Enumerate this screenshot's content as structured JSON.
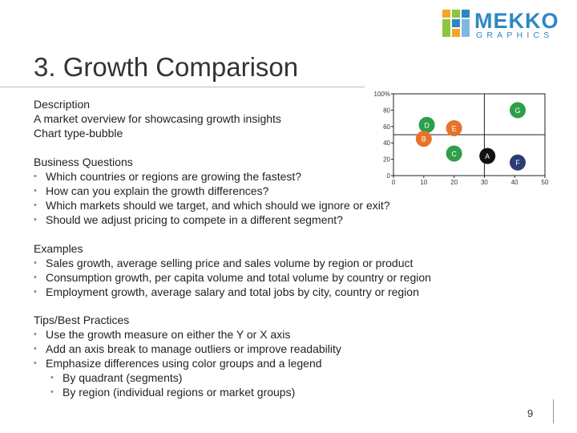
{
  "logo": {
    "main": "MEKKO",
    "sub": "GRAPHICS"
  },
  "title": "3. Growth Comparison",
  "description": {
    "heading": "Description",
    "lines": [
      "A market overview for showcasing growth insights",
      "Chart type-bubble"
    ]
  },
  "business_questions": {
    "heading": "Business Questions",
    "items": [
      "Which countries or regions are growing the fastest?",
      "How can you explain the growth differences?",
      "Which markets should we target, and which should we ignore or exit?",
      "Should we adjust pricing to compete in a different segment?"
    ]
  },
  "examples": {
    "heading": "Examples",
    "items": [
      "Sales growth, average selling price and sales volume by region or product",
      "Consumption growth, per capita volume and total volume by country or region",
      "Employment growth, average salary and total jobs by city, country or region"
    ]
  },
  "tips": {
    "heading": "Tips/Best Practices",
    "items": [
      "Use the growth measure on either the Y or X axis",
      "Add an axis break to manage outliers or improve readability",
      "Emphasize differences using color groups and a legend"
    ],
    "subitems": [
      "By quadrant (segments)",
      "By region (individual regions or market groups)"
    ]
  },
  "page_number": "9",
  "colors": {
    "accent": "#2e87c4",
    "green": "#2e9e4a",
    "orange": "#e8722c",
    "navy": "#2b3d73",
    "black": "#111111"
  },
  "chart_data": {
    "type": "scatter",
    "title": "",
    "xlabel": "",
    "ylabel": "",
    "xlim": [
      0,
      50
    ],
    "ylim": [
      0,
      100
    ],
    "x_ticks": [
      "0",
      "10",
      "20",
      "30",
      "40",
      "50"
    ],
    "y_ticks": [
      "0",
      "20",
      "40",
      "60",
      "80",
      "100%"
    ],
    "quadrant_lines": {
      "x": 30,
      "y": 50
    },
    "points": [
      {
        "label": "D",
        "x": 11,
        "y": 62,
        "color": "#2e9e4a"
      },
      {
        "label": "E",
        "x": 20,
        "y": 58,
        "color": "#e8722c"
      },
      {
        "label": "B",
        "x": 10,
        "y": 45,
        "color": "#e8722c"
      },
      {
        "label": "C",
        "x": 20,
        "y": 27,
        "color": "#2e9e4a"
      },
      {
        "label": "A",
        "x": 31,
        "y": 24,
        "color": "#111111"
      },
      {
        "label": "G",
        "x": 41,
        "y": 80,
        "color": "#2e9e4a"
      },
      {
        "label": "F",
        "x": 41,
        "y": 16,
        "color": "#2b3d73"
      }
    ]
  }
}
